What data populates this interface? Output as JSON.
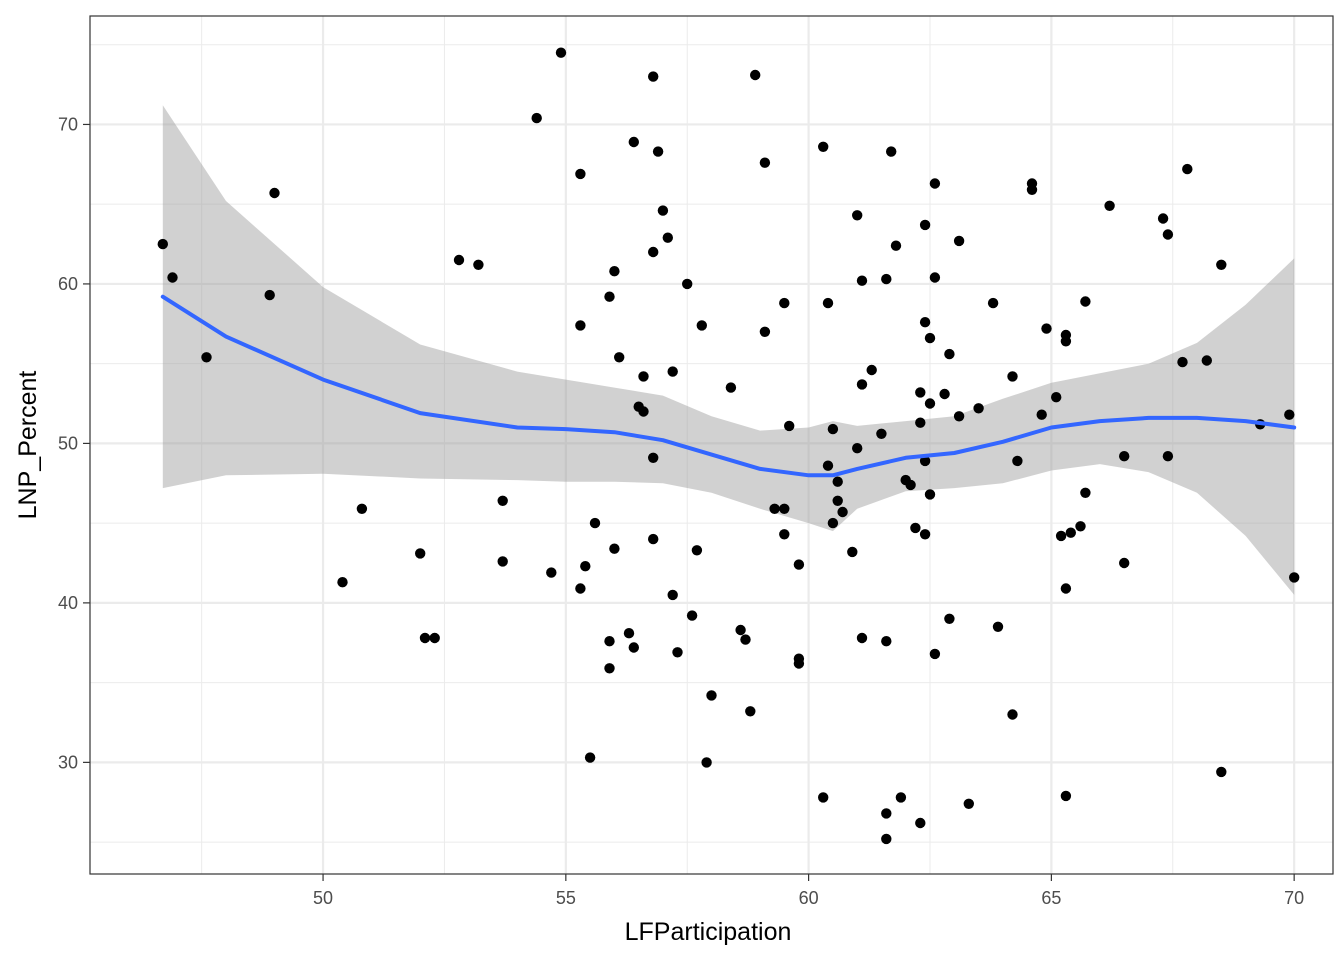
{
  "chart_data": {
    "type": "scatter",
    "xlabel": "LFParticipation",
    "ylabel": "LNP_Percent",
    "xlim": [
      45.2,
      70.8
    ],
    "ylim": [
      23.0,
      76.8
    ],
    "x_ticks": [
      50,
      55,
      60,
      65,
      70
    ],
    "x_tick_labels": [
      "50",
      "55",
      "60",
      "65",
      "70"
    ],
    "y_ticks": [
      30,
      40,
      50,
      60,
      70
    ],
    "y_tick_labels": [
      "30",
      "40",
      "50",
      "60",
      "70"
    ],
    "grid": true,
    "theme": "bw",
    "points": [
      [
        46.7,
        62.5
      ],
      [
        46.9,
        60.4
      ],
      [
        47.6,
        55.4
      ],
      [
        48.9,
        59.3
      ],
      [
        49.0,
        65.7
      ],
      [
        50.4,
        41.3
      ],
      [
        50.8,
        45.9
      ],
      [
        52.0,
        43.1
      ],
      [
        52.1,
        37.8
      ],
      [
        52.3,
        37.8
      ],
      [
        52.8,
        61.5
      ],
      [
        53.2,
        61.2
      ],
      [
        53.7,
        46.4
      ],
      [
        53.7,
        42.6
      ],
      [
        54.4,
        70.4
      ],
      [
        54.7,
        41.9
      ],
      [
        54.9,
        74.5
      ],
      [
        55.3,
        66.9
      ],
      [
        55.3,
        57.4
      ],
      [
        55.3,
        40.9
      ],
      [
        55.4,
        42.3
      ],
      [
        55.5,
        30.3
      ],
      [
        55.6,
        45.0
      ],
      [
        55.9,
        35.9
      ],
      [
        55.9,
        37.6
      ],
      [
        55.9,
        59.2
      ],
      [
        56.0,
        60.8
      ],
      [
        56.0,
        43.4
      ],
      [
        56.1,
        55.4
      ],
      [
        56.3,
        38.1
      ],
      [
        56.4,
        37.2
      ],
      [
        56.4,
        68.9
      ],
      [
        56.5,
        52.3
      ],
      [
        56.6,
        54.2
      ],
      [
        56.6,
        52.0
      ],
      [
        56.8,
        49.1
      ],
      [
        56.8,
        44.0
      ],
      [
        56.8,
        62.0
      ],
      [
        56.8,
        73.0
      ],
      [
        56.9,
        68.3
      ],
      [
        57.0,
        64.6
      ],
      [
        57.1,
        62.9
      ],
      [
        57.2,
        40.5
      ],
      [
        57.2,
        54.5
      ],
      [
        57.3,
        36.9
      ],
      [
        57.5,
        60.0
      ],
      [
        57.6,
        39.2
      ],
      [
        57.7,
        43.3
      ],
      [
        57.8,
        57.4
      ],
      [
        57.9,
        30.0
      ],
      [
        58.0,
        34.2
      ],
      [
        58.4,
        53.5
      ],
      [
        58.6,
        38.3
      ],
      [
        58.7,
        37.7
      ],
      [
        58.8,
        33.2
      ],
      [
        58.9,
        73.1
      ],
      [
        59.1,
        67.6
      ],
      [
        59.1,
        57.0
      ],
      [
        59.3,
        45.9
      ],
      [
        59.5,
        45.9
      ],
      [
        59.5,
        58.8
      ],
      [
        59.5,
        44.3
      ],
      [
        59.6,
        51.1
      ],
      [
        59.8,
        36.2
      ],
      [
        59.8,
        36.5
      ],
      [
        59.8,
        42.4
      ],
      [
        60.3,
        27.8
      ],
      [
        60.3,
        68.6
      ],
      [
        60.4,
        58.8
      ],
      [
        60.4,
        48.6
      ],
      [
        60.5,
        45.0
      ],
      [
        60.5,
        50.9
      ],
      [
        60.6,
        46.4
      ],
      [
        60.6,
        47.6
      ],
      [
        60.7,
        45.7
      ],
      [
        60.9,
        43.2
      ],
      [
        61.0,
        64.3
      ],
      [
        61.0,
        49.7
      ],
      [
        61.1,
        60.2
      ],
      [
        61.1,
        53.7
      ],
      [
        61.1,
        37.8
      ],
      [
        61.3,
        54.6
      ],
      [
        61.5,
        50.6
      ],
      [
        61.6,
        60.3
      ],
      [
        61.6,
        37.6
      ],
      [
        61.6,
        26.8
      ],
      [
        61.6,
        25.2
      ],
      [
        61.7,
        68.3
      ],
      [
        61.8,
        62.4
      ],
      [
        61.9,
        27.8
      ],
      [
        62.0,
        47.7
      ],
      [
        62.1,
        47.4
      ],
      [
        62.2,
        44.7
      ],
      [
        62.3,
        51.3
      ],
      [
        62.3,
        53.2
      ],
      [
        62.3,
        26.2
      ],
      [
        62.4,
        44.3
      ],
      [
        62.4,
        63.7
      ],
      [
        62.4,
        57.6
      ],
      [
        62.4,
        48.9
      ],
      [
        62.5,
        46.8
      ],
      [
        62.5,
        52.5
      ],
      [
        62.5,
        56.6
      ],
      [
        62.6,
        60.4
      ],
      [
        62.6,
        66.3
      ],
      [
        62.6,
        36.8
      ],
      [
        62.8,
        53.1
      ],
      [
        62.9,
        55.6
      ],
      [
        62.9,
        39.0
      ],
      [
        63.1,
        62.7
      ],
      [
        63.1,
        51.7
      ],
      [
        63.3,
        27.4
      ],
      [
        63.5,
        52.2
      ],
      [
        63.8,
        58.8
      ],
      [
        63.9,
        38.5
      ],
      [
        64.2,
        54.2
      ],
      [
        64.2,
        33.0
      ],
      [
        64.3,
        48.9
      ],
      [
        64.6,
        66.3
      ],
      [
        64.6,
        65.9
      ],
      [
        64.8,
        51.8
      ],
      [
        64.9,
        57.2
      ],
      [
        65.1,
        52.9
      ],
      [
        65.2,
        44.2
      ],
      [
        65.3,
        56.4
      ],
      [
        65.3,
        56.8
      ],
      [
        65.3,
        40.9
      ],
      [
        65.3,
        27.9
      ],
      [
        65.4,
        44.4
      ],
      [
        65.6,
        44.8
      ],
      [
        65.7,
        58.9
      ],
      [
        65.7,
        46.9
      ],
      [
        66.2,
        64.9
      ],
      [
        66.5,
        49.2
      ],
      [
        66.5,
        42.5
      ],
      [
        67.3,
        64.1
      ],
      [
        67.4,
        63.1
      ],
      [
        67.4,
        49.2
      ],
      [
        67.7,
        55.1
      ],
      [
        67.8,
        67.2
      ],
      [
        68.2,
        55.2
      ],
      [
        68.5,
        61.2
      ],
      [
        68.5,
        29.4
      ],
      [
        69.3,
        51.2
      ],
      [
        69.9,
        51.8
      ],
      [
        70.0,
        41.6
      ]
    ],
    "smooth": {
      "color": "#3366FF",
      "band_color": "#999999",
      "x": [
        46.7,
        48.0,
        50.0,
        52.0,
        54.0,
        55.0,
        56.0,
        57.0,
        58.0,
        59.0,
        60.0,
        60.5,
        61.0,
        62.0,
        63.0,
        64.0,
        65.0,
        66.0,
        67.0,
        68.0,
        69.0,
        70.0
      ],
      "y": [
        59.2,
        56.7,
        54.0,
        51.9,
        51.0,
        50.9,
        50.7,
        50.2,
        49.3,
        48.4,
        48.0,
        48.0,
        48.4,
        49.1,
        49.4,
        50.1,
        51.0,
        51.4,
        51.6,
        51.6,
        51.4,
        51.0
      ],
      "lo": [
        47.2,
        48.0,
        48.1,
        47.8,
        47.7,
        47.6,
        47.6,
        47.5,
        46.9,
        45.9,
        45.0,
        44.5,
        45.9,
        47.0,
        47.2,
        47.5,
        48.3,
        48.7,
        48.2,
        46.9,
        44.2,
        40.5
      ],
      "hi": [
        71.2,
        65.2,
        59.8,
        56.2,
        54.5,
        54.0,
        53.5,
        53.0,
        51.7,
        50.8,
        51.0,
        51.4,
        51.1,
        51.4,
        51.7,
        52.8,
        53.8,
        54.4,
        55.0,
        56.3,
        58.7,
        61.6
      ]
    }
  }
}
